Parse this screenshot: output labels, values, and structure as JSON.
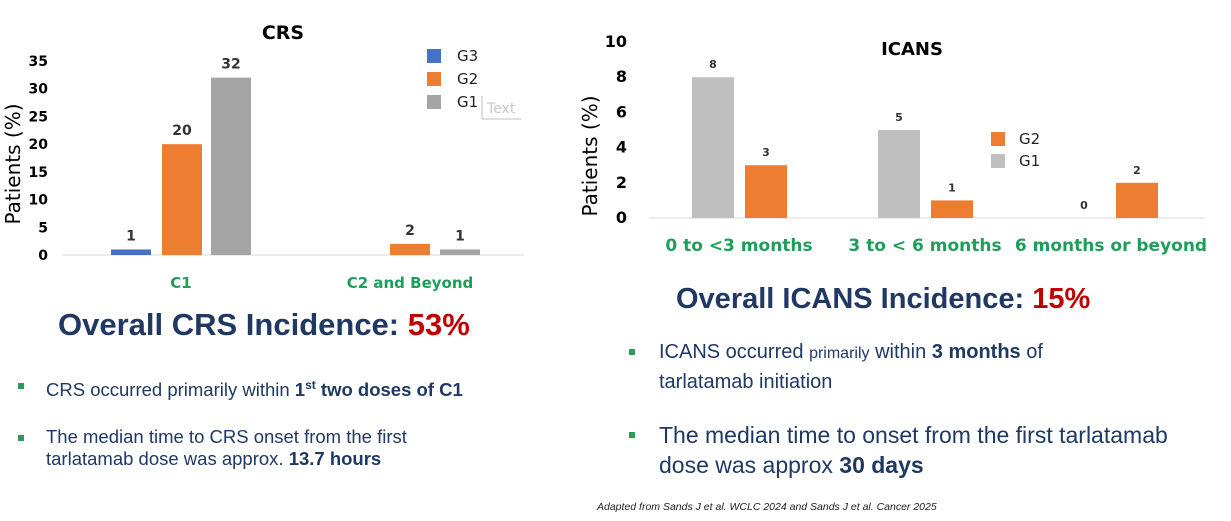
{
  "chart_data": [
    {
      "id": "crs",
      "type": "bar",
      "title": "CRS",
      "ylabel": "Patients (%)",
      "ylim": [
        0,
        35
      ],
      "yticks": [
        "0",
        "5",
        "10",
        "15",
        "20",
        "25",
        "30",
        "35"
      ],
      "categories": [
        "C1",
        "C2 and Beyond"
      ],
      "series": [
        {
          "name": "G3",
          "color": "#4472c4",
          "values": [
            1,
            null
          ],
          "labels": [
            "1",
            ""
          ]
        },
        {
          "name": "G2",
          "color": "#ed7d31",
          "values": [
            20,
            2
          ],
          "labels": [
            "20",
            "2"
          ]
        },
        {
          "name": "G1",
          "color": "#a5a5a5",
          "values": [
            32,
            1
          ],
          "labels": [
            "32",
            "1"
          ]
        }
      ],
      "legend": [
        "G3",
        "G2",
        "G1"
      ],
      "stray_text": "Text"
    },
    {
      "id": "icans",
      "type": "bar",
      "title": "ICANS",
      "ylabel": "Patients (%)",
      "ylim": [
        0,
        10
      ],
      "yticks": [
        "0",
        "2",
        "4",
        "6",
        "8",
        "10"
      ],
      "categories": [
        "0 to <3 months",
        "3 to < 6 months",
        "6 months or beyond"
      ],
      "series": [
        {
          "name": "G1",
          "color": "#bfbfbf",
          "values": [
            8,
            5,
            0
          ],
          "labels": [
            "8",
            "5",
            "0"
          ]
        },
        {
          "name": "G2",
          "color": "#ed7d31",
          "values": [
            3,
            1,
            2
          ],
          "labels": [
            "3",
            "1",
            "2"
          ]
        }
      ],
      "legend": [
        "G2",
        "G1"
      ]
    }
  ],
  "crs_summary": {
    "headline": "Overall CRS Incidence:",
    "percent": "53%",
    "bullet1": {
      "pre": "CRS occurred primarily within ",
      "bold_a": "1",
      "sup": "st",
      "bold_b": " two doses of C1"
    },
    "bullet2": {
      "line1": "The median time to CRS onset from the first",
      "line2": "tarlatamab dose was approx. ",
      "bold": "13.7 hours"
    }
  },
  "icans_summary": {
    "headline": "Overall ICANS Incidence:",
    "percent": "15%",
    "bullet1": {
      "pre": "ICANS occurred ",
      "small": "primarily",
      "mid": " within ",
      "bold": "3 months",
      "post": " of",
      "line2": "tarlatamab initiation"
    },
    "bullet2": {
      "line1": "The median time to onset from the first tarlatamab",
      "line2": "dose was approx ",
      "bold": "30 days"
    }
  },
  "citation": "Adapted from Sands J et al. WCLC 2024 and  Sands J et al. Cancer 2025"
}
